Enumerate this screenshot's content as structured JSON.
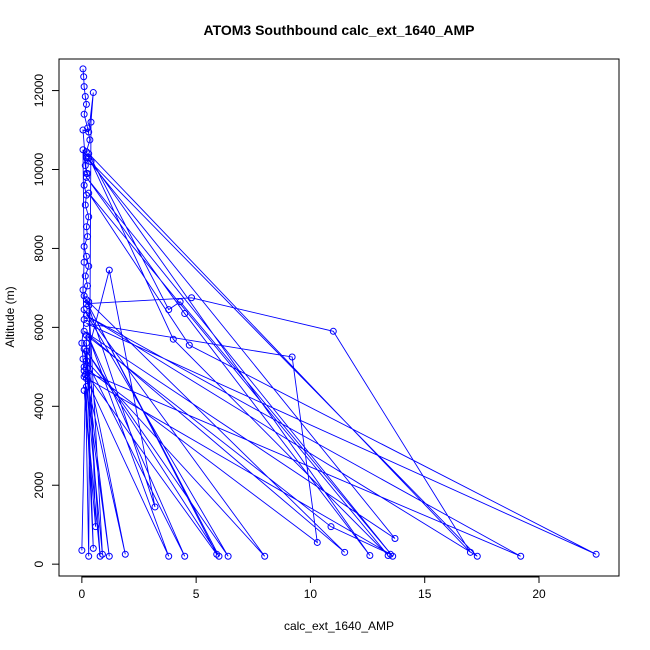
{
  "chart_data": {
    "type": "line",
    "title": "ATOM3 Southbound calc_ext_1640_AMP",
    "xlabel": "calc_ext_1640_AMP",
    "ylabel": "Altitude (m)",
    "xlim": [
      -1,
      23.5
    ],
    "ylim": [
      -300,
      12800
    ],
    "x_ticks": [
      0,
      5,
      10,
      15,
      20
    ],
    "y_ticks": [
      0,
      2000,
      4000,
      6000,
      8000,
      10000,
      12000
    ],
    "grid": false,
    "legend": "none",
    "series_color": "#0000ff",
    "series": [
      {
        "points": [
          [
            0.05,
            12550
          ],
          [
            0.08,
            12350
          ],
          [
            0.1,
            12100
          ],
          [
            0.15,
            11850
          ],
          [
            0.2,
            11650
          ],
          [
            0.1,
            11400
          ],
          [
            0.25,
            11050
          ],
          [
            0.35,
            10750
          ],
          [
            0.2,
            10450
          ],
          [
            0.3,
            10300
          ],
          [
            0.15,
            10100
          ],
          [
            0.25,
            9900
          ],
          [
            0.1,
            9600
          ],
          [
            0.2,
            9350
          ],
          [
            0.15,
            9100
          ],
          [
            0.3,
            8800
          ],
          [
            0.2,
            8550
          ],
          [
            0.25,
            8300
          ],
          [
            0.1,
            8050
          ],
          [
            0.2,
            7800
          ],
          [
            0.3,
            7550
          ],
          [
            0.15,
            7300
          ],
          [
            0.25,
            7050
          ],
          [
            0.1,
            6800
          ],
          [
            0.2,
            6600
          ],
          [
            4.8,
            6750
          ],
          [
            11.0,
            5900
          ],
          [
            17.0,
            300
          ],
          [
            0.3,
            10400
          ],
          [
            3.8,
            6450
          ],
          [
            4.3,
            6650
          ],
          [
            13.6,
            200
          ],
          [
            0.2,
            9800
          ],
          [
            4.5,
            6350
          ],
          [
            12.6,
            220
          ],
          [
            0.4,
            10200
          ],
          [
            4.0,
            5700
          ],
          [
            13.4,
            220
          ],
          [
            0.3,
            9400
          ],
          [
            4.7,
            5550
          ],
          [
            22.5,
            250
          ],
          [
            0.2,
            6100
          ],
          [
            9.2,
            5250
          ],
          [
            10.3,
            550
          ],
          [
            0.1,
            5000
          ],
          [
            1.2,
            7450
          ],
          [
            3.2,
            1450
          ],
          [
            0.2,
            6700
          ],
          [
            11.5,
            300
          ],
          [
            0.1,
            5900
          ],
          [
            13.7,
            650
          ],
          [
            0.2,
            10300
          ],
          [
            17.3,
            200
          ],
          [
            0.2,
            6300
          ],
          [
            19.2,
            200
          ],
          [
            0.1,
            4900
          ],
          [
            5.9,
            250
          ],
          [
            0.3,
            6550
          ],
          [
            6.0,
            200
          ],
          [
            0.2,
            5400
          ],
          [
            6.4,
            200
          ],
          [
            0.1,
            6450
          ],
          [
            8.0,
            200
          ],
          [
            0.2,
            5150
          ],
          [
            4.5,
            200
          ],
          [
            0.3,
            5750
          ],
          [
            3.8,
            200
          ],
          [
            0.2,
            4700
          ],
          [
            1.9,
            250
          ],
          [
            0.1,
            5450
          ],
          [
            1.2,
            200
          ],
          [
            0.2,
            4500
          ],
          [
            0.9,
            250
          ],
          [
            0.3,
            6650
          ],
          [
            0.6,
            950
          ],
          [
            0.1,
            4400
          ],
          [
            0.8,
            200
          ],
          [
            0.2,
            5600
          ],
          [
            0.5,
            400
          ],
          [
            0.15,
            4800
          ],
          [
            0.3,
            200
          ],
          [
            0.4,
            11200
          ],
          [
            0.5,
            11950
          ],
          [
            0.3,
            10950
          ],
          [
            0.05,
            11000
          ],
          [
            0.2,
            9900
          ],
          [
            0.05,
            10500
          ],
          [
            0.1,
            7650
          ],
          [
            0.05,
            6950
          ],
          [
            0.1,
            6200
          ],
          [
            0.0,
            5600
          ],
          [
            0.05,
            5200
          ],
          [
            0.1,
            4750
          ],
          [
            13.5,
            250
          ],
          [
            10.9,
            950
          ],
          [
            0.2,
            5800
          ],
          [
            0.0,
            350
          ]
        ]
      }
    ]
  }
}
